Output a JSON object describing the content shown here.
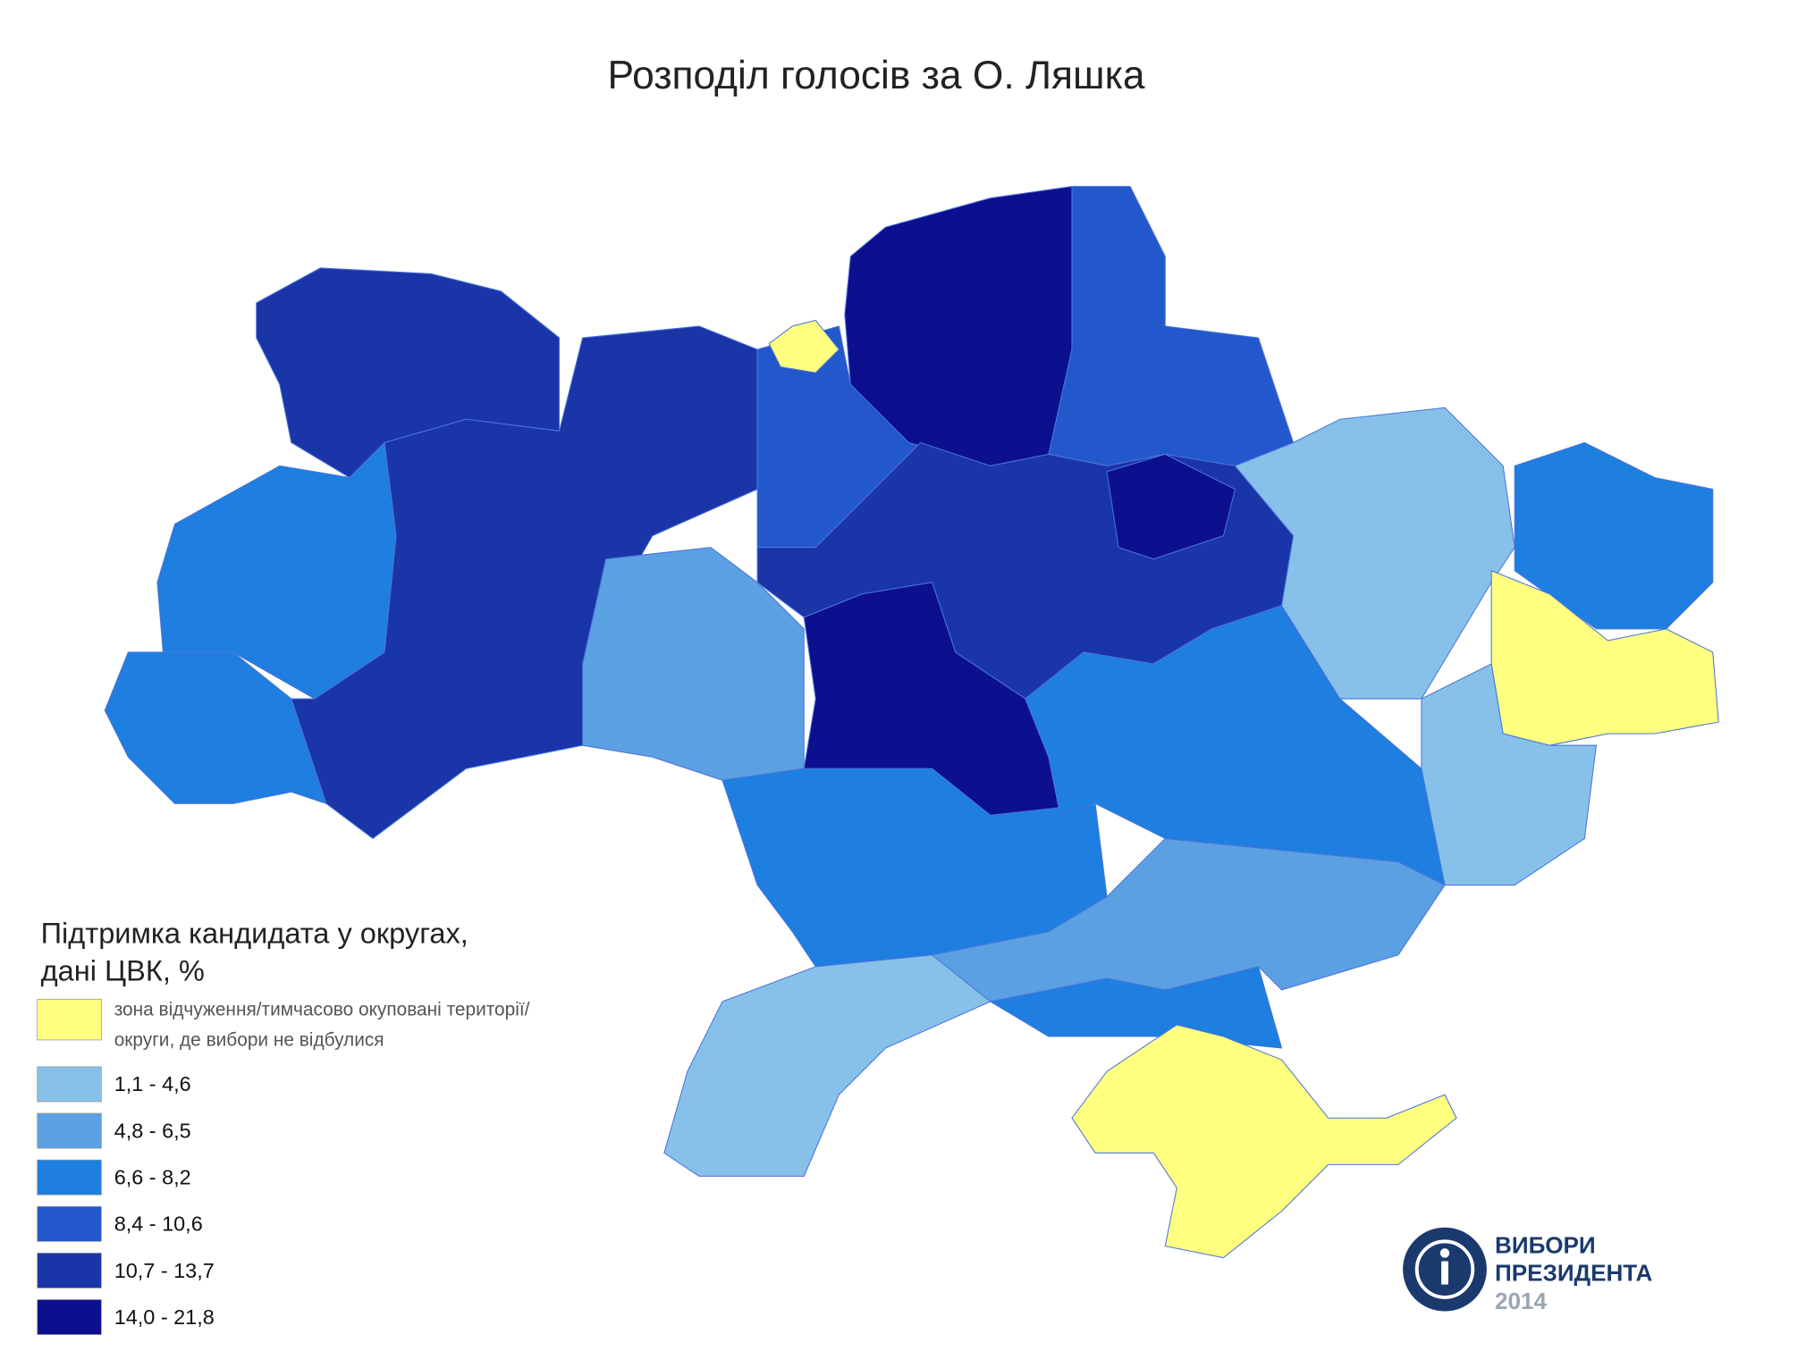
{
  "title": "Розподіл голосів за О. Ляшка",
  "legend": {
    "title_lines": [
      "Підтримка кандидата у округах,",
      "дані ЦВК, %"
    ],
    "items": [
      {
        "label_lines": [
          "зона відчуження/тимчасово окуповані території/",
          "округи, де вибори не відбулися"
        ],
        "color": "#ffff80"
      },
      {
        "label_lines": [
          "1,1 - 4,6"
        ],
        "color": "#87c1ea"
      },
      {
        "label_lines": [
          "4,8 - 6,5"
        ],
        "color": "#5ba0e3"
      },
      {
        "label_lines": [
          "6,6 - 8,2"
        ],
        "color": "#1e7fe0"
      },
      {
        "label_lines": [
          "8,4 - 10,6"
        ],
        "color": "#2358cc"
      },
      {
        "label_lines": [
          "10,7 - 13,7"
        ],
        "color": "#1a35a8"
      },
      {
        "label_lines": [
          "14,0 - 21,8"
        ],
        "color": "#0c0f8e"
      }
    ]
  },
  "logo": {
    "lines": [
      "ВИБОРИ",
      "ПРЕЗИДЕНТА"
    ],
    "year": "2014"
  }
}
